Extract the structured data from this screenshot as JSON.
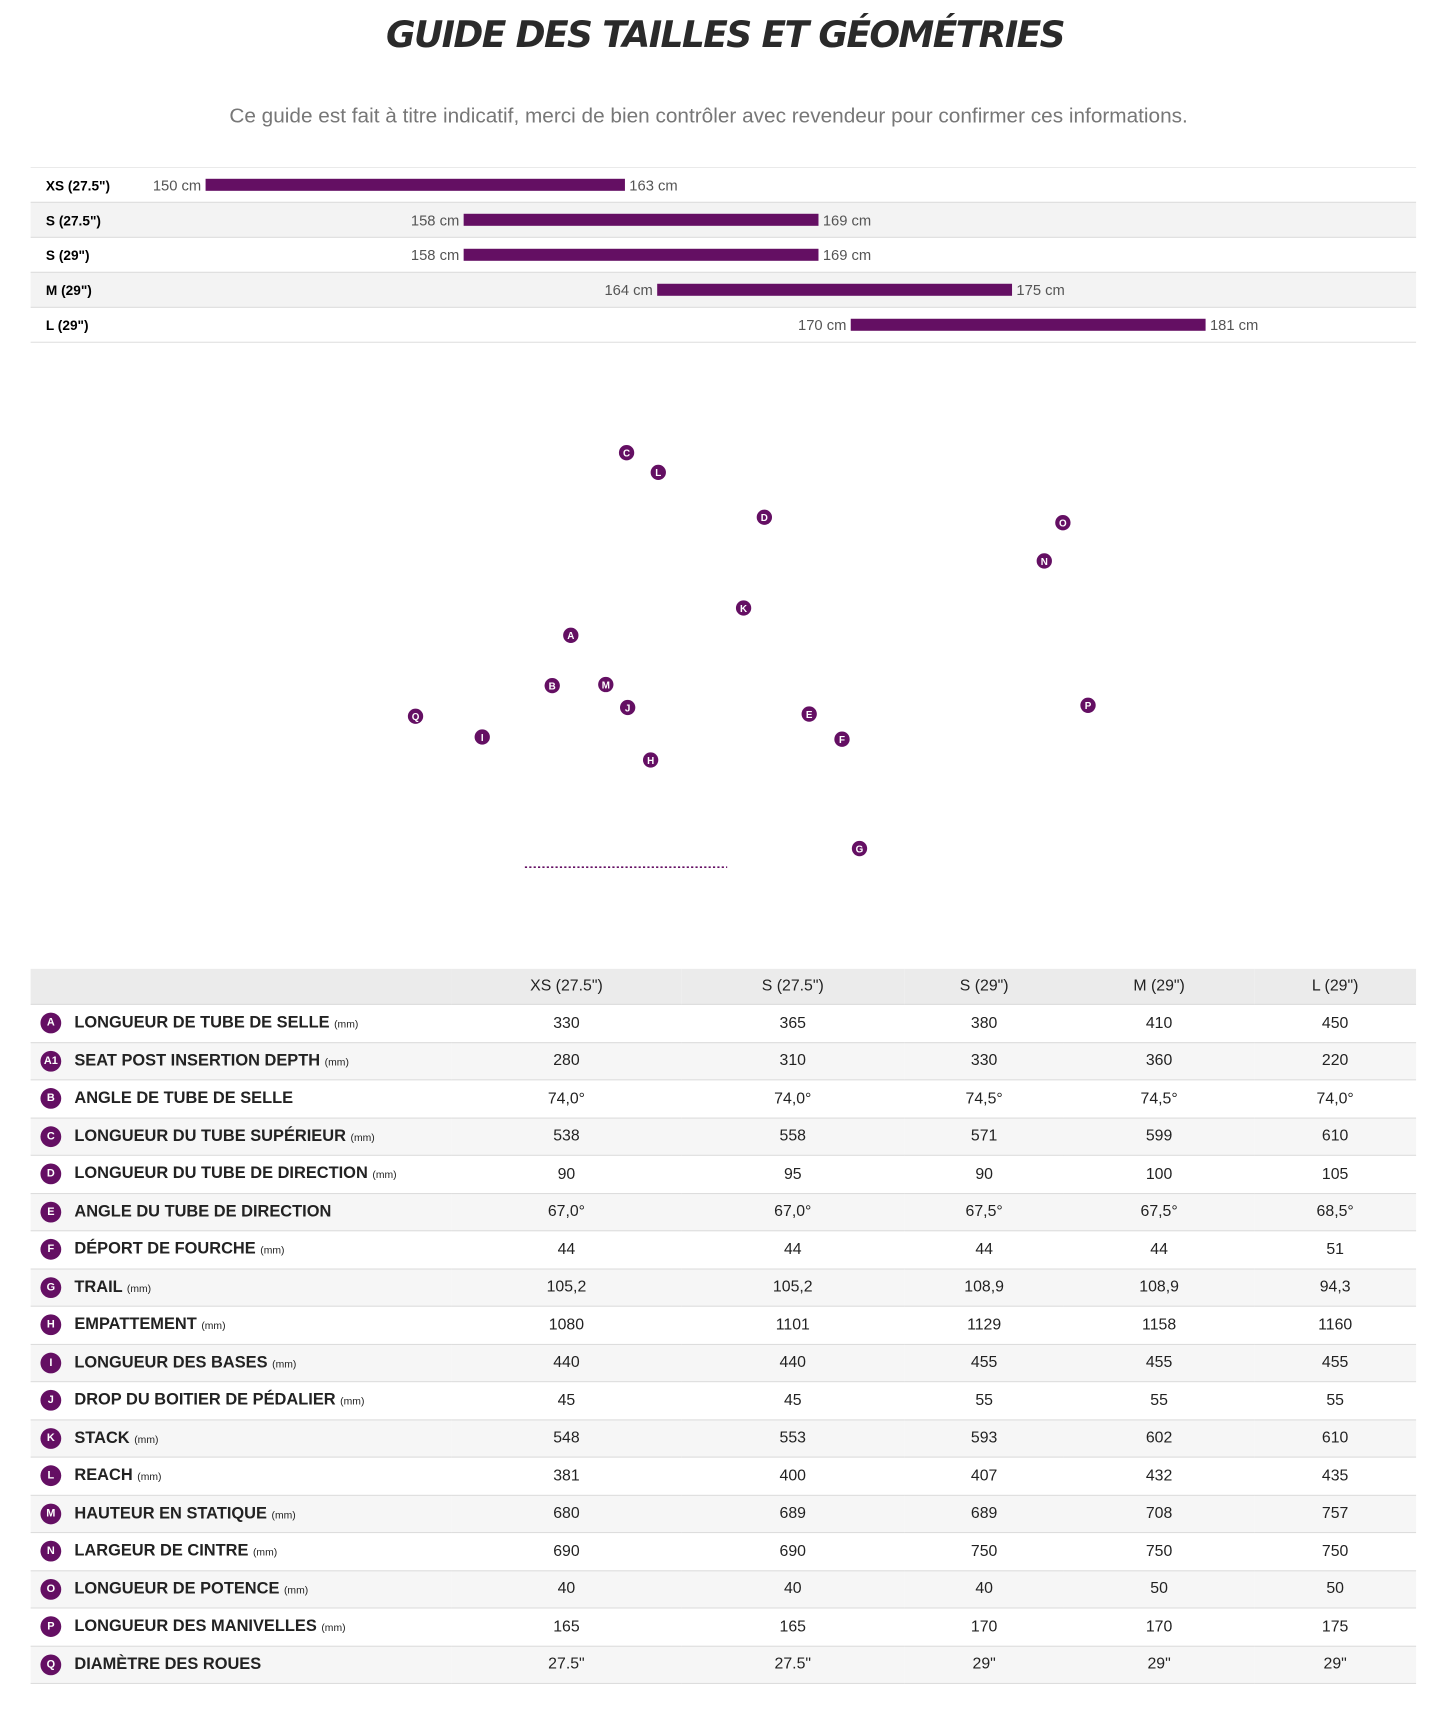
{
  "header": {
    "title": "GUIDE DES TAILLES ET GÉOMÉTRIES",
    "subtitle": "Ce guide est fait à titre indicatif, merci de bien contrôler avec revendeur pour confirmer ces informations."
  },
  "chart_data": {
    "type": "range-bar",
    "categories": [
      "XS (27.5\")",
      "S (27.5\")",
      "S (29\")",
      "M (29\")",
      "L (29\")"
    ],
    "low": [
      150,
      158,
      158,
      164,
      170
    ],
    "high": [
      163,
      169,
      169,
      175,
      181
    ],
    "low_labels": [
      "150 cm",
      "158 cm",
      "158 cm",
      "164 cm",
      "170 cm"
    ],
    "high_labels": [
      "163 cm",
      "169 cm",
      "169 cm",
      "175 cm",
      "181 cm"
    ],
    "color": "#640f63",
    "xlim": [
      148,
      188
    ]
  },
  "diagram": {
    "labels": [
      "C",
      "L",
      "D",
      "K",
      "A",
      "B",
      "M",
      "J",
      "Q",
      "E",
      "F",
      "I",
      "H",
      "G",
      "O",
      "N",
      "P"
    ]
  },
  "table": {
    "columns": [
      "XS (27.5\")",
      "S (27.5\")",
      "S (29\")",
      "M (29\")",
      "L (29\")"
    ],
    "rows": [
      {
        "key": "A",
        "label": "LONGUEUR DE TUBE DE SELLE",
        "unit": "(mm)",
        "values": [
          "330",
          "365",
          "380",
          "410",
          "450"
        ]
      },
      {
        "key": "A1",
        "label": "SEAT POST INSERTION DEPTH",
        "unit": "(mm)",
        "values": [
          "280",
          "310",
          "330",
          "360",
          "220"
        ]
      },
      {
        "key": "B",
        "label": "ANGLE DE TUBE DE SELLE",
        "values": [
          "74,0°",
          "74,0°",
          "74,5°",
          "74,5°",
          "74,0°"
        ]
      },
      {
        "key": "C",
        "label": "LONGUEUR DU TUBE SUPÉRIEUR",
        "unit": "(mm)",
        "values": [
          "538",
          "558",
          "571",
          "599",
          "610"
        ]
      },
      {
        "key": "D",
        "label": "LONGUEUR DU TUBE DE DIRECTION",
        "unit": "(mm)",
        "values": [
          "90",
          "95",
          "90",
          "100",
          "105"
        ]
      },
      {
        "key": "E",
        "label": "ANGLE DU TUBE DE DIRECTION",
        "values": [
          "67,0°",
          "67,0°",
          "67,5°",
          "67,5°",
          "68,5°"
        ]
      },
      {
        "key": "F",
        "label": "DÉPORT DE FOURCHE",
        "unit": "(mm)",
        "values": [
          "44",
          "44",
          "44",
          "44",
          "51"
        ]
      },
      {
        "key": "G",
        "label": "TRAIL",
        "unit": "(mm)",
        "values": [
          "105,2",
          "105,2",
          "108,9",
          "108,9",
          "94,3"
        ]
      },
      {
        "key": "H",
        "label": "EMPATTEMENT",
        "unit": "(mm)",
        "values": [
          "1080",
          "1101",
          "1129",
          "1158",
          "1160"
        ]
      },
      {
        "key": "I",
        "label": "LONGUEUR DES BASES",
        "unit": "(mm)",
        "values": [
          "440",
          "440",
          "455",
          "455",
          "455"
        ]
      },
      {
        "key": "J",
        "label": "DROP DU BOITIER DE PÉDALIER",
        "unit": "(mm)",
        "values": [
          "45",
          "45",
          "55",
          "55",
          "55"
        ]
      },
      {
        "key": "K",
        "label": "STACK",
        "unit": "(mm)",
        "values": [
          "548",
          "553",
          "593",
          "602",
          "610"
        ]
      },
      {
        "key": "L",
        "label": "REACH",
        "unit": "(mm)",
        "values": [
          "381",
          "400",
          "407",
          "432",
          "435"
        ]
      },
      {
        "key": "M",
        "label": "HAUTEUR EN STATIQUE",
        "unit": "(mm)",
        "values": [
          "680",
          "689",
          "689",
          "708",
          "757"
        ]
      },
      {
        "key": "N",
        "label": "LARGEUR DE CINTRE",
        "unit": "(mm)",
        "values": [
          "690",
          "690",
          "750",
          "750",
          "750"
        ]
      },
      {
        "key": "O",
        "label": "LONGUEUR DE POTENCE",
        "unit": "(mm)",
        "values": [
          "40",
          "40",
          "40",
          "50",
          "50"
        ]
      },
      {
        "key": "P",
        "label": "LONGUEUR DES MANIVELLES",
        "unit": "(mm)",
        "values": [
          "165",
          "165",
          "170",
          "170",
          "175"
        ]
      },
      {
        "key": "Q",
        "label": "DIAMÈTRE DES ROUES",
        "values": [
          "27.5\"",
          "27.5\"",
          "29\"",
          "29\"",
          "29\""
        ]
      }
    ]
  }
}
